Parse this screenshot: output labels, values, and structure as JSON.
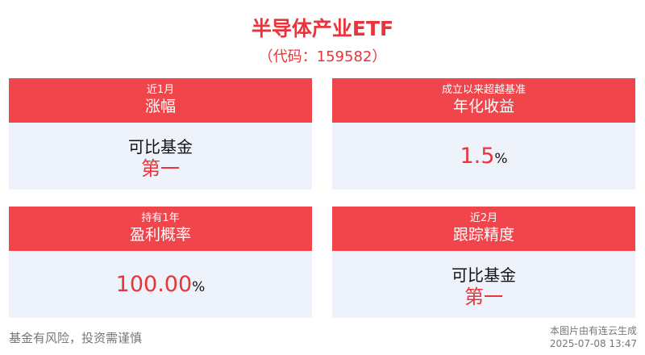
{
  "header": {
    "title": "半导体产业ETF",
    "subtitle": "（代码：159582）"
  },
  "cards": [
    {
      "header": [
        "近1月",
        "涨幅"
      ],
      "body": {
        "lines": [
          "可比基金",
          "第一"
        ]
      }
    },
    {
      "header": [
        "成立以来超越基准",
        "年化收益"
      ],
      "body": {
        "value": "1.5",
        "unit": "%"
      }
    },
    {
      "header": [
        "持有1年",
        "盈利概率"
      ],
      "body": {
        "value": "100.00",
        "unit": "%"
      }
    },
    {
      "header": [
        "近2月",
        "跟踪精度"
      ],
      "body": {
        "lines": [
          "可比基金",
          "第一"
        ]
      }
    }
  ],
  "footer": {
    "disclaimer": "基金有风险，投资需谨慎",
    "source": [
      "本图片由有连云生成",
      "2025-07-08 13:47"
    ]
  }
}
